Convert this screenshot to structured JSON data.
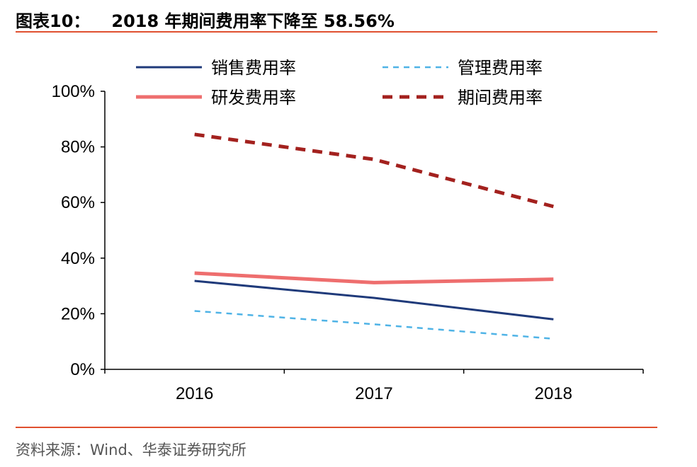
{
  "header": {
    "label": "图表10：",
    "title": "2018 年期间费用率下降至 58.56%"
  },
  "footer": {
    "source": "资料来源：Wind、华泰证券研究所"
  },
  "colors": {
    "rule": "#e0502f",
    "axis": "#000000"
  },
  "chart_data": {
    "type": "line",
    "x": [
      "2016",
      "2017",
      "2018"
    ],
    "ylim": [
      0,
      100
    ],
    "yticks": [
      0,
      20,
      40,
      60,
      80,
      100
    ],
    "ytick_labels": [
      "0%",
      "20%",
      "40%",
      "60%",
      "80%",
      "100%"
    ],
    "grid": false,
    "legend_position": "top",
    "series": [
      {
        "name": "销售费用率",
        "values": [
          31.8,
          25.7,
          18.0
        ],
        "color": "#1f3a7a",
        "style": "solid"
      },
      {
        "name": "管理费用率",
        "values": [
          21.0,
          16.2,
          11.0
        ],
        "color": "#4fb3e6",
        "style": "dashed"
      },
      {
        "name": "研发费用率",
        "values": [
          34.6,
          31.2,
          32.4
        ],
        "color": "#ee6e6e",
        "style": "solid-thick"
      },
      {
        "name": "期间费用率",
        "values": [
          84.5,
          75.5,
          58.56
        ],
        "color": "#a3211e",
        "style": "dashed-thick"
      }
    ]
  }
}
